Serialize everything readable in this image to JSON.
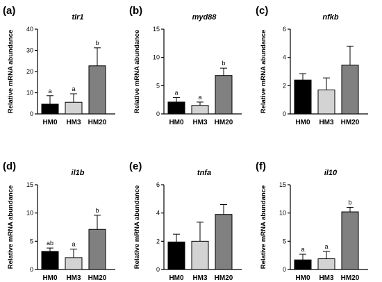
{
  "chart_data": [
    {
      "type": "bar",
      "panel_label": "(a)",
      "title": "tlr1",
      "ylabel": "Relative mRNA abundance",
      "categories": [
        "HM0",
        "HM3",
        "HM20"
      ],
      "values": [
        4.6,
        5.5,
        22.7
      ],
      "errors": [
        4.0,
        4.0,
        8.5
      ],
      "significance": [
        "a",
        "a",
        "b"
      ],
      "ylim": [
        0,
        40
      ],
      "yticks": [
        "0",
        "10",
        "20",
        "30",
        "40"
      ],
      "colors": [
        "#000000",
        "#d3d3d3",
        "#808080"
      ]
    },
    {
      "type": "bar",
      "panel_label": "(b)",
      "title": "myd88",
      "ylabel": "Relative mRNA abundance",
      "categories": [
        "HM0",
        "HM3",
        "HM20"
      ],
      "values": [
        2.1,
        1.5,
        6.8
      ],
      "errors": [
        0.8,
        0.6,
        1.3
      ],
      "significance": [
        "a",
        "a",
        "b"
      ],
      "ylim": [
        0,
        15
      ],
      "yticks": [
        "0",
        "5",
        "10",
        "15"
      ],
      "colors": [
        "#000000",
        "#d3d3d3",
        "#808080"
      ]
    },
    {
      "type": "bar",
      "panel_label": "(c)",
      "title": "nfkb",
      "ylabel": "Relative mRNA abundance",
      "categories": [
        "HM0",
        "HM3",
        "HM20"
      ],
      "values": [
        2.4,
        1.7,
        3.45
      ],
      "errors": [
        0.45,
        0.85,
        1.35
      ],
      "significance": [
        "",
        "",
        ""
      ],
      "ylim": [
        0,
        6
      ],
      "yticks": [
        "0",
        "2",
        "4",
        "6"
      ],
      "colors": [
        "#000000",
        "#d3d3d3",
        "#808080"
      ]
    },
    {
      "type": "bar",
      "panel_label": "(d)",
      "title": "il1b",
      "ylabel": "Relative mRNA abundance",
      "categories": [
        "HM0",
        "HM3",
        "HM20"
      ],
      "values": [
        3.2,
        2.1,
        7.1
      ],
      "errors": [
        0.6,
        1.5,
        2.5
      ],
      "significance": [
        "ab",
        "a",
        "b"
      ],
      "ylim": [
        0,
        15
      ],
      "yticks": [
        "0",
        "5",
        "10",
        "15"
      ],
      "colors": [
        "#000000",
        "#d3d3d3",
        "#808080"
      ]
    },
    {
      "type": "bar",
      "panel_label": "(e)",
      "title": "tnfa",
      "ylabel": "Relative mRNA abundance",
      "categories": [
        "HM0",
        "HM3",
        "HM20"
      ],
      "values": [
        1.95,
        2.0,
        3.9
      ],
      "errors": [
        0.55,
        1.35,
        0.7
      ],
      "significance": [
        "",
        "",
        ""
      ],
      "ylim": [
        0,
        6
      ],
      "yticks": [
        "0",
        "2",
        "4",
        "6"
      ],
      "colors": [
        "#000000",
        "#d3d3d3",
        "#808080"
      ]
    },
    {
      "type": "bar",
      "panel_label": "(f)",
      "title": "il10",
      "ylabel": "Relative mRNA abundance",
      "categories": [
        "HM0",
        "HM3",
        "HM20"
      ],
      "values": [
        1.7,
        1.9,
        10.2
      ],
      "errors": [
        1.0,
        1.3,
        0.8
      ],
      "significance": [
        "a",
        "a",
        "b"
      ],
      "ylim": [
        0,
        15
      ],
      "yticks": [
        "0",
        "5",
        "10",
        "15"
      ],
      "colors": [
        "#000000",
        "#d3d3d3",
        "#808080"
      ]
    }
  ]
}
